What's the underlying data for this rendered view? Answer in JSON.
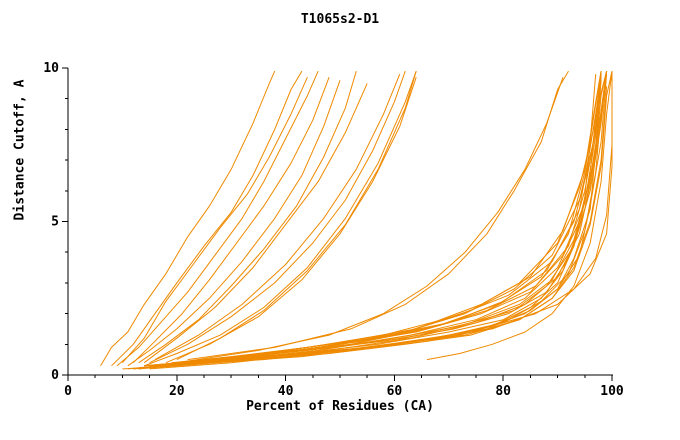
{
  "chart_data": {
    "type": "line",
    "title": "T1065s2-D1",
    "xlabel": "Percent of Residues (CA)",
    "ylabel": "Distance Cutoff, A",
    "xlim": [
      0,
      100
    ],
    "ylim": [
      0,
      10
    ],
    "x_ticks": [
      0,
      20,
      40,
      60,
      80,
      100
    ],
    "x_minor_step": 5,
    "y_ticks": [
      0,
      5,
      10
    ],
    "y_minor_step": 1,
    "grid": false,
    "legend": "none",
    "line_color": "#ef8a00",
    "axis_color": "#000000",
    "series": [
      [
        [
          6,
          0.3
        ],
        [
          8,
          0.9
        ],
        [
          11,
          1.4
        ],
        [
          14,
          2.3
        ],
        [
          18,
          3.3
        ],
        [
          22,
          4.5
        ],
        [
          26,
          5.5
        ],
        [
          30,
          6.7
        ],
        [
          34,
          8.2
        ],
        [
          37,
          9.5
        ],
        [
          38,
          9.9
        ]
      ],
      [
        [
          8,
          0.3
        ],
        [
          12,
          1.0
        ],
        [
          16,
          2.0
        ],
        [
          20,
          3.0
        ],
        [
          25,
          4.2
        ],
        [
          30,
          5.3
        ],
        [
          34,
          6.5
        ],
        [
          38,
          8.0
        ],
        [
          41,
          9.3
        ],
        [
          43,
          9.9
        ]
      ],
      [
        [
          10,
          0.4
        ],
        [
          14,
          1.2
        ],
        [
          18,
          2.4
        ],
        [
          23,
          3.6
        ],
        [
          28,
          4.8
        ],
        [
          33,
          5.9
        ],
        [
          37,
          7.1
        ],
        [
          41,
          8.5
        ],
        [
          44,
          9.7
        ]
      ],
      [
        [
          9,
          0.3
        ],
        [
          13,
          0.9
        ],
        [
          17,
          1.7
        ],
        [
          22,
          2.7
        ],
        [
          27,
          3.9
        ],
        [
          32,
          5.1
        ],
        [
          36,
          6.3
        ],
        [
          40,
          7.7
        ],
        [
          44,
          9.1
        ],
        [
          46,
          9.9
        ]
      ],
      [
        [
          12,
          0.4
        ],
        [
          16,
          1.1
        ],
        [
          21,
          2.0
        ],
        [
          26,
          3.1
        ],
        [
          31,
          4.3
        ],
        [
          36,
          5.5
        ],
        [
          41,
          6.9
        ],
        [
          45,
          8.3
        ],
        [
          48,
          9.7
        ]
      ],
      [
        [
          11,
          0.3
        ],
        [
          15,
          0.8
        ],
        [
          20,
          1.5
        ],
        [
          26,
          2.5
        ],
        [
          32,
          3.7
        ],
        [
          38,
          5.1
        ],
        [
          43,
          6.5
        ],
        [
          47,
          8.1
        ],
        [
          50,
          9.6
        ]
      ],
      [
        [
          13,
          0.4
        ],
        [
          18,
          1.0
        ],
        [
          24,
          1.8
        ],
        [
          30,
          2.9
        ],
        [
          36,
          4.1
        ],
        [
          42,
          5.5
        ],
        [
          47,
          7.1
        ],
        [
          51,
          8.7
        ],
        [
          53,
          9.9
        ]
      ],
      [
        [
          14,
          0.4
        ],
        [
          20,
          1.2
        ],
        [
          27,
          2.2
        ],
        [
          34,
          3.5
        ],
        [
          40,
          4.9
        ],
        [
          46,
          6.3
        ],
        [
          51,
          7.9
        ],
        [
          55,
          9.5
        ]
      ],
      [
        [
          15,
          0.4
        ],
        [
          22,
          1.0
        ],
        [
          30,
          1.9
        ],
        [
          38,
          3.0
        ],
        [
          45,
          4.3
        ],
        [
          51,
          5.7
        ],
        [
          56,
          7.3
        ],
        [
          60,
          8.9
        ],
        [
          62,
          9.9
        ]
      ],
      [
        [
          16,
          0.5
        ],
        [
          24,
          1.3
        ],
        [
          32,
          2.3
        ],
        [
          40,
          3.6
        ],
        [
          47,
          5.1
        ],
        [
          53,
          6.7
        ],
        [
          58,
          8.5
        ],
        [
          61,
          9.8
        ]
      ],
      [
        [
          18,
          0.4
        ],
        [
          26,
          1.0
        ],
        [
          35,
          1.9
        ],
        [
          43,
          3.1
        ],
        [
          50,
          4.6
        ],
        [
          56,
          6.3
        ],
        [
          61,
          8.1
        ],
        [
          64,
          9.7
        ]
      ],
      [
        [
          20,
          0.5
        ],
        [
          28,
          1.2
        ],
        [
          36,
          2.1
        ],
        [
          44,
          3.4
        ],
        [
          51,
          4.9
        ],
        [
          57,
          6.7
        ],
        [
          62,
          8.7
        ],
        [
          64,
          9.9
        ]
      ],
      [
        [
          14,
          0.3
        ],
        [
          20,
          0.7
        ],
        [
          28,
          1.3
        ],
        [
          36,
          2.2
        ],
        [
          44,
          3.5
        ],
        [
          51,
          5.1
        ],
        [
          57,
          6.9
        ],
        [
          62,
          8.9
        ],
        [
          64,
          9.9
        ]
      ],
      [
        [
          20,
          0.4
        ],
        [
          35,
          0.8
        ],
        [
          48,
          1.3
        ],
        [
          58,
          2.0
        ],
        [
          66,
          2.9
        ],
        [
          73,
          4.0
        ],
        [
          79,
          5.3
        ],
        [
          84,
          6.7
        ],
        [
          88,
          8.2
        ],
        [
          91,
          9.7
        ]
      ],
      [
        [
          22,
          0.5
        ],
        [
          38,
          0.9
        ],
        [
          52,
          1.5
        ],
        [
          62,
          2.3
        ],
        [
          70,
          3.3
        ],
        [
          77,
          4.6
        ],
        [
          82,
          6.0
        ],
        [
          87,
          7.6
        ],
        [
          90,
          9.3
        ],
        [
          92,
          9.9
        ]
      ],
      [
        [
          12,
          0.2
        ],
        [
          25,
          0.4
        ],
        [
          40,
          0.6
        ],
        [
          55,
          0.9
        ],
        [
          68,
          1.2
        ],
        [
          78,
          1.6
        ],
        [
          85,
          2.2
        ],
        [
          90,
          3.0
        ],
        [
          93,
          4.2
        ],
        [
          95,
          5.8
        ],
        [
          96,
          7.6
        ],
        [
          97,
          9.8
        ]
      ],
      [
        [
          13,
          0.2
        ],
        [
          26,
          0.5
        ],
        [
          42,
          0.7
        ],
        [
          57,
          1.0
        ],
        [
          70,
          1.4
        ],
        [
          80,
          1.8
        ],
        [
          87,
          2.5
        ],
        [
          91,
          3.4
        ],
        [
          94,
          4.8
        ],
        [
          96,
          6.6
        ],
        [
          97,
          8.4
        ],
        [
          98,
          9.9
        ]
      ],
      [
        [
          14,
          0.3
        ],
        [
          28,
          0.5
        ],
        [
          44,
          0.8
        ],
        [
          58,
          1.1
        ],
        [
          71,
          1.5
        ],
        [
          81,
          2.0
        ],
        [
          88,
          2.7
        ],
        [
          92,
          3.8
        ],
        [
          95,
          5.4
        ],
        [
          97,
          7.4
        ],
        [
          98,
          9.7
        ]
      ],
      [
        [
          15,
          0.3
        ],
        [
          30,
          0.5
        ],
        [
          46,
          0.8
        ],
        [
          60,
          1.2
        ],
        [
          72,
          1.6
        ],
        [
          82,
          2.1
        ],
        [
          88,
          2.9
        ],
        [
          93,
          4.2
        ],
        [
          96,
          6.0
        ],
        [
          98,
          8.2
        ],
        [
          99,
          9.9
        ]
      ],
      [
        [
          16,
          0.3
        ],
        [
          32,
          0.6
        ],
        [
          48,
          0.9
        ],
        [
          62,
          1.2
        ],
        [
          74,
          1.7
        ],
        [
          83,
          2.3
        ],
        [
          89,
          3.1
        ],
        [
          93,
          4.4
        ],
        [
          96,
          6.4
        ],
        [
          98,
          8.6
        ],
        [
          99,
          9.9
        ]
      ],
      [
        [
          15,
          0.2
        ],
        [
          30,
          0.4
        ],
        [
          46,
          0.7
        ],
        [
          60,
          1.0
        ],
        [
          73,
          1.3
        ],
        [
          83,
          1.8
        ],
        [
          89,
          2.5
        ],
        [
          93,
          3.5
        ],
        [
          96,
          5.0
        ],
        [
          98,
          7.0
        ],
        [
          99,
          9.4
        ]
      ],
      [
        [
          17,
          0.3
        ],
        [
          33,
          0.6
        ],
        [
          49,
          0.9
        ],
        [
          63,
          1.3
        ],
        [
          75,
          1.8
        ],
        [
          84,
          2.5
        ],
        [
          90,
          3.5
        ],
        [
          94,
          5.0
        ],
        [
          97,
          7.2
        ],
        [
          98,
          9.1
        ],
        [
          99,
          9.9
        ]
      ],
      [
        [
          18,
          0.3
        ],
        [
          34,
          0.6
        ],
        [
          50,
          1.0
        ],
        [
          64,
          1.4
        ],
        [
          76,
          2.0
        ],
        [
          85,
          2.7
        ],
        [
          91,
          3.9
        ],
        [
          95,
          5.6
        ],
        [
          97,
          7.8
        ],
        [
          98,
          9.7
        ]
      ],
      [
        [
          19,
          0.4
        ],
        [
          36,
          0.7
        ],
        [
          52,
          1.0
        ],
        [
          66,
          1.5
        ],
        [
          77,
          2.1
        ],
        [
          86,
          2.9
        ],
        [
          92,
          4.2
        ],
        [
          95,
          6.0
        ],
        [
          97,
          8.0
        ],
        [
          98,
          9.8
        ]
      ],
      [
        [
          20,
          0.4
        ],
        [
          38,
          0.7
        ],
        [
          54,
          1.1
        ],
        [
          68,
          1.6
        ],
        [
          79,
          2.3
        ],
        [
          87,
          3.2
        ],
        [
          92,
          4.6
        ],
        [
          95,
          6.6
        ],
        [
          97,
          8.8
        ],
        [
          98,
          9.9
        ]
      ],
      [
        [
          16,
          0.3
        ],
        [
          32,
          0.5
        ],
        [
          48,
          0.8
        ],
        [
          63,
          1.2
        ],
        [
          75,
          1.7
        ],
        [
          84,
          2.3
        ],
        [
          90,
          3.2
        ],
        [
          94,
          4.6
        ],
        [
          96,
          6.2
        ],
        [
          98,
          8.4
        ],
        [
          99,
          9.9
        ]
      ],
      [
        [
          14,
          0.3
        ],
        [
          27,
          0.5
        ],
        [
          40,
          0.8
        ],
        [
          56,
          1.2
        ],
        [
          70,
          1.7
        ],
        [
          80,
          2.4
        ],
        [
          88,
          3.4
        ],
        [
          93,
          5.0
        ],
        [
          96,
          7.0
        ],
        [
          98,
          9.2
        ],
        [
          99,
          9.9
        ]
      ],
      [
        [
          15,
          0.3
        ],
        [
          30,
          0.6
        ],
        [
          44,
          0.9
        ],
        [
          58,
          1.3
        ],
        [
          71,
          1.9
        ],
        [
          81,
          2.6
        ],
        [
          89,
          3.7
        ],
        [
          94,
          5.4
        ],
        [
          96,
          7.4
        ],
        [
          98,
          9.6
        ]
      ],
      [
        [
          12,
          0.2
        ],
        [
          24,
          0.4
        ],
        [
          38,
          0.6
        ],
        [
          52,
          0.8
        ],
        [
          66,
          1.1
        ],
        [
          77,
          1.5
        ],
        [
          85,
          2.1
        ],
        [
          90,
          2.8
        ],
        [
          94,
          3.9
        ],
        [
          96,
          5.5
        ],
        [
          98,
          7.6
        ],
        [
          99,
          9.8
        ]
      ],
      [
        [
          13,
          0.2
        ],
        [
          27,
          0.4
        ],
        [
          43,
          0.6
        ],
        [
          57,
          0.9
        ],
        [
          70,
          1.3
        ],
        [
          80,
          1.7
        ],
        [
          87,
          2.4
        ],
        [
          92,
          3.3
        ],
        [
          95,
          4.7
        ],
        [
          97,
          6.6
        ],
        [
          98,
          8.6
        ],
        [
          99,
          9.9
        ]
      ],
      [
        [
          14,
          0.3
        ],
        [
          28,
          0.5
        ],
        [
          44,
          0.9
        ],
        [
          60,
          1.3
        ],
        [
          73,
          2.0
        ],
        [
          82,
          2.8
        ],
        [
          89,
          3.9
        ],
        [
          94,
          5.7
        ],
        [
          97,
          7.9
        ],
        [
          98,
          9.8
        ]
      ],
      [
        [
          11,
          0.2
        ],
        [
          22,
          0.4
        ],
        [
          36,
          0.5
        ],
        [
          50,
          0.8
        ],
        [
          64,
          1.1
        ],
        [
          76,
          1.5
        ],
        [
          84,
          2.0
        ],
        [
          90,
          2.8
        ],
        [
          93,
          3.8
        ],
        [
          96,
          5.4
        ],
        [
          97,
          7.3
        ],
        [
          98,
          9.6
        ]
      ],
      [
        [
          15,
          0.3
        ],
        [
          30,
          0.5
        ],
        [
          46,
          0.9
        ],
        [
          62,
          1.4
        ],
        [
          74,
          2.1
        ],
        [
          83,
          3.0
        ],
        [
          90,
          4.3
        ],
        [
          94,
          6.1
        ],
        [
          97,
          8.3
        ],
        [
          98,
          9.9
        ]
      ],
      [
        [
          10,
          0.2
        ],
        [
          20,
          0.3
        ],
        [
          34,
          0.5
        ],
        [
          48,
          0.7
        ],
        [
          62,
          1.0
        ],
        [
          74,
          1.3
        ],
        [
          83,
          1.8
        ],
        [
          89,
          2.5
        ],
        [
          93,
          3.4
        ],
        [
          96,
          4.9
        ],
        [
          98,
          6.8
        ],
        [
          99,
          9.1
        ],
        [
          100,
          9.9
        ]
      ],
      [
        [
          16,
          0.3
        ],
        [
          32,
          0.6
        ],
        [
          48,
          1.0
        ],
        [
          64,
          1.5
        ],
        [
          76,
          2.3
        ],
        [
          85,
          3.2
        ],
        [
          91,
          4.7
        ],
        [
          95,
          6.7
        ],
        [
          97,
          8.9
        ],
        [
          98,
          9.9
        ]
      ],
      [
        [
          25,
          0.4
        ],
        [
          50,
          0.8
        ],
        [
          72,
          1.3
        ],
        [
          86,
          2.0
        ],
        [
          93,
          2.8
        ],
        [
          97,
          3.8
        ],
        [
          99,
          5.2
        ],
        [
          100,
          7.5
        ],
        [
          100,
          9.9
        ]
      ],
      [
        [
          30,
          0.5
        ],
        [
          55,
          0.9
        ],
        [
          78,
          1.5
        ],
        [
          90,
          2.3
        ],
        [
          96,
          3.3
        ],
        [
          99,
          4.6
        ],
        [
          100,
          6.8
        ],
        [
          100,
          9.9
        ]
      ],
      [
        [
          66,
          0.5
        ],
        [
          72,
          0.7
        ],
        [
          78,
          1.0
        ],
        [
          84,
          1.4
        ],
        [
          89,
          2.0
        ],
        [
          93,
          2.9
        ],
        [
          96,
          4.3
        ],
        [
          98,
          6.3
        ],
        [
          99,
          8.5
        ],
        [
          100,
          9.9
        ]
      ]
    ]
  }
}
